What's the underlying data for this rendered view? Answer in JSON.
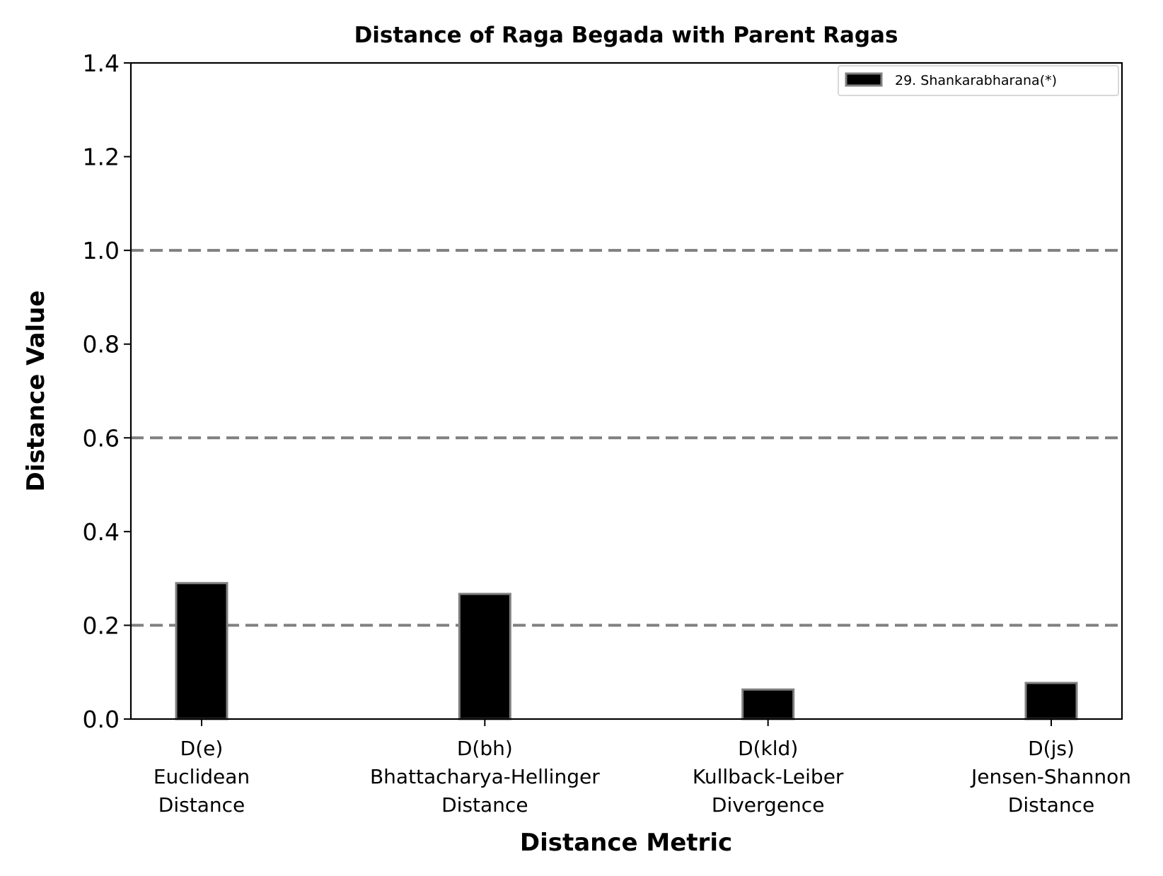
{
  "chart_data": {
    "type": "bar",
    "title": "Distance of Raga Begada with Parent Ragas",
    "xlabel": "Distance Metric",
    "ylabel": "Distance Value",
    "categories": [
      [
        "D(e)",
        "Euclidean",
        "Distance"
      ],
      [
        "D(bh)",
        "Bhattacharya-Hellinger",
        "Distance"
      ],
      [
        "D(kld)",
        "Kullback-Leiber",
        "Divergence"
      ],
      [
        "D(js)",
        "Jensen-Shannon",
        "Distance"
      ]
    ],
    "series": [
      {
        "name": "29. Shankarabharana(*)",
        "values": [
          0.29,
          0.267,
          0.063,
          0.077
        ],
        "fill": "#000000",
        "edge": "#808080"
      }
    ],
    "ylim": [
      0,
      1.4
    ],
    "yticks": [
      "0.0",
      "0.2",
      "0.4",
      "0.6",
      "0.8",
      "1.0",
      "1.2",
      "1.4"
    ],
    "reference_lines": [
      0.2,
      0.6,
      1.0
    ],
    "reference_line_color": "#808080",
    "legend_position": "top-right",
    "grid": false
  }
}
